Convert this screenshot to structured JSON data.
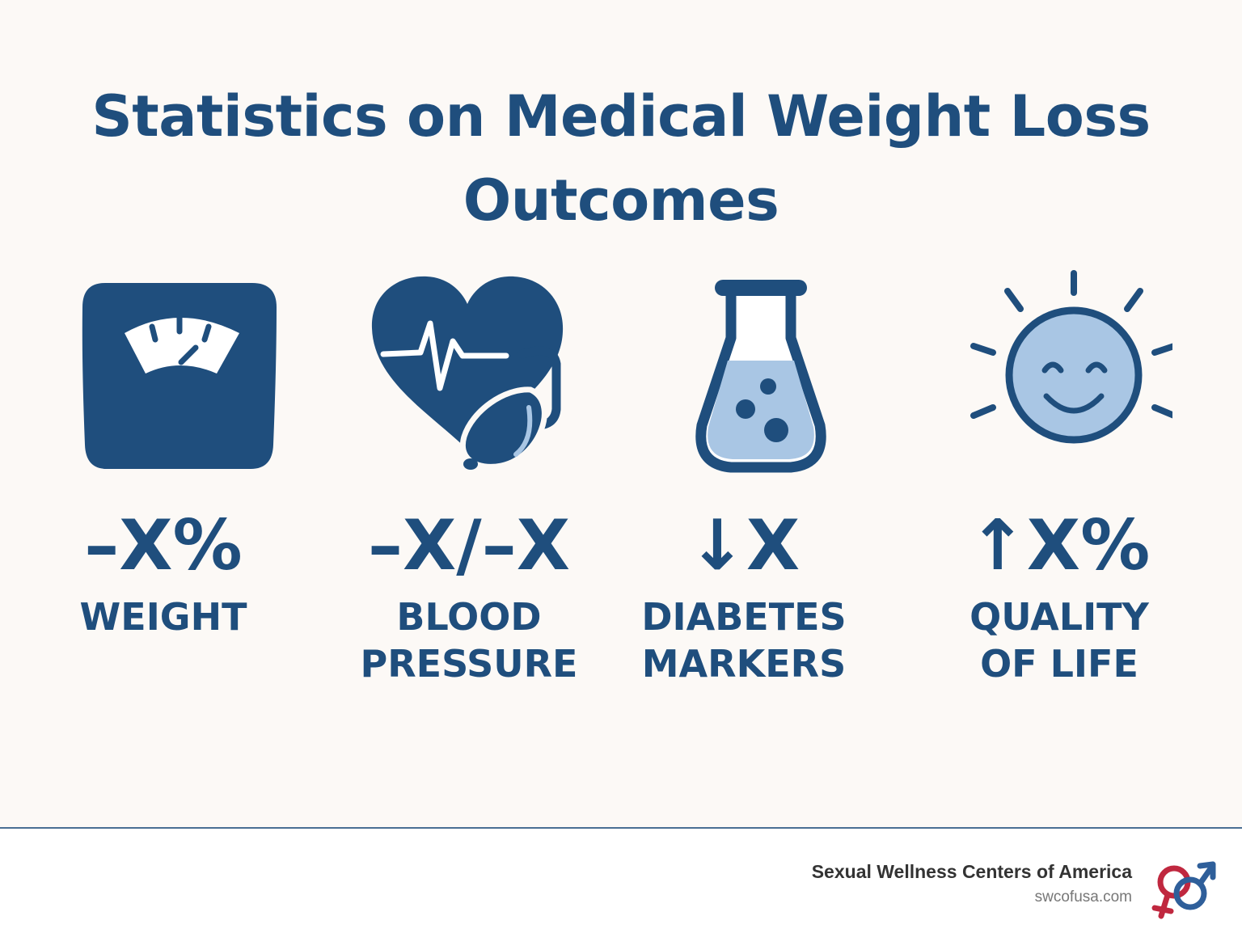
{
  "title": {
    "line1": "Statistics on Medical Weight Loss",
    "line2": "Outcomes"
  },
  "colors": {
    "primary": "#1f4e7d",
    "light_fill": "#a9c6e4",
    "background": "#fcf9f6",
    "logo_red": "#c0283f",
    "logo_blue": "#2f5f9a"
  },
  "stats": [
    {
      "icon": "scale-icon",
      "value": "–X%",
      "label": "WEIGHT"
    },
    {
      "icon": "heart-blood-pressure-icon",
      "value": "–X/–X",
      "label": "BLOOD\nPRESSURE"
    },
    {
      "icon": "flask-icon",
      "value": "↓X",
      "label": "DIABETES\nMARKERS"
    },
    {
      "icon": "smiling-sun-icon",
      "value": "↑X%",
      "label": "QUALITY\nOF LIFE"
    }
  ],
  "footer": {
    "brand_name": "Sexual Wellness Centers of America",
    "brand_url": "swcofusa.com",
    "logo_icon": "gender-symbols-logo-icon"
  }
}
